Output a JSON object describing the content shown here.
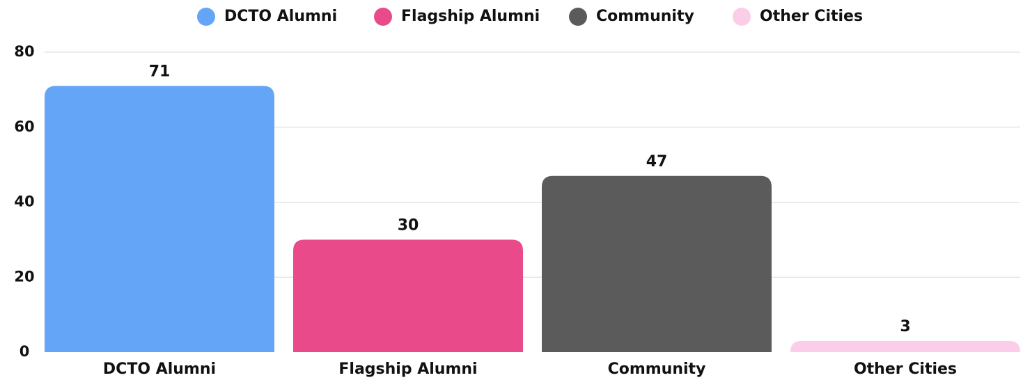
{
  "chart_data": {
    "type": "bar",
    "categories": [
      "DCTO Alumni",
      "Flagship Alumni",
      "Community",
      "Other Cities"
    ],
    "values": [
      71,
      30,
      47,
      3
    ],
    "colors": [
      "#64a5f8",
      "#e84a8a",
      "#5b5b5b",
      "#fccde8"
    ],
    "ylim": [
      0,
      80
    ],
    "yticks": [
      0,
      20,
      40,
      60,
      80
    ],
    "grid": true,
    "legend": "top",
    "data_labels": true
  }
}
